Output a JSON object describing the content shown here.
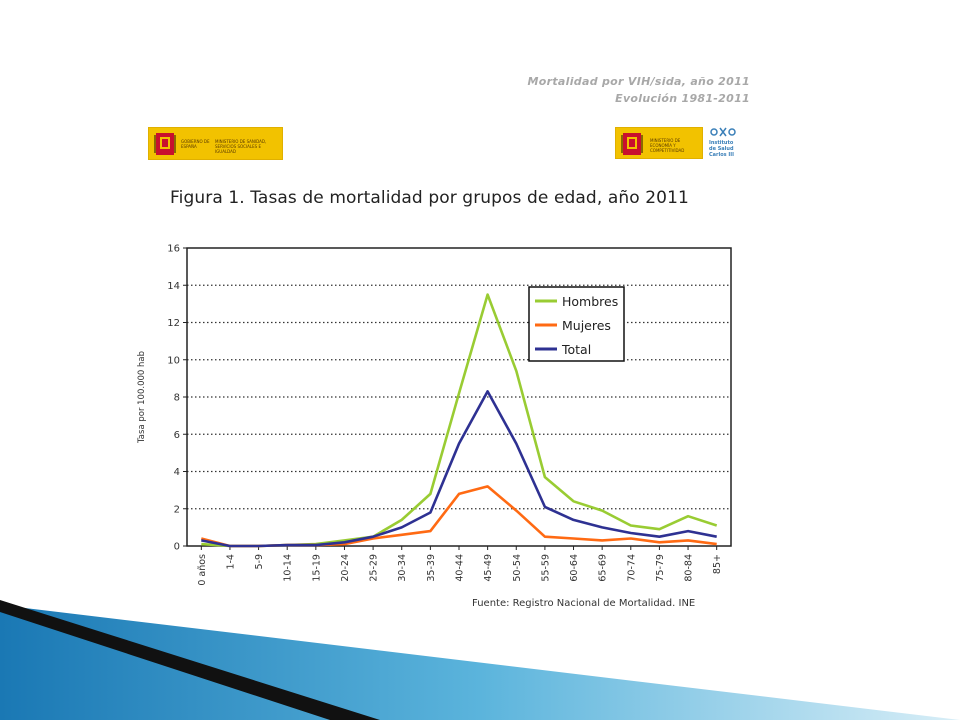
{
  "header": {
    "line1": "Mortalidad por VIH/sida, año 2011",
    "line2": "Evolución 1981-2011"
  },
  "logos": {
    "left_text_a": "GOBIERNO DE ESPAÑA",
    "left_text_b": "MINISTERIO DE SANIDAD, SERVICIOS SOCIALES E IGUALDAD",
    "right_text_a": "MINISTERIO DE ECONOMÍA Y COMPETITIVIDAD",
    "isciii_text": "Instituto de Salud Carlos III"
  },
  "figure": {
    "title": "Figura 1. Tasas de mortalidad por grupos de edad, año 2011",
    "source": "Fuente: Registro Nacional de Mortalidad. INE"
  },
  "chart_data": {
    "type": "line",
    "title": "Figura 1. Tasas de mortalidad por grupos de edad, año 2011",
    "xlabel": "",
    "ylabel": "Tasa por 100.000 hab",
    "ylim": [
      0,
      16
    ],
    "yticks": [
      0,
      2,
      4,
      6,
      8,
      10,
      12,
      14,
      16
    ],
    "grid": true,
    "legend_position": "top-right",
    "categories": [
      "0 años",
      "1-4",
      "5-9",
      "10-14",
      "15-19",
      "20-24",
      "25-29",
      "30-34",
      "35-39",
      "40-44",
      "45-49",
      "50-54",
      "55-59",
      "60-64",
      "65-69",
      "70-74",
      "75-79",
      "80-84",
      "85+"
    ],
    "series": [
      {
        "name": "Hombres",
        "color": "#99cc33",
        "values": [
          0.1,
          0.0,
          0.0,
          0.05,
          0.1,
          0.3,
          0.5,
          1.4,
          2.8,
          8.2,
          13.5,
          9.4,
          3.7,
          2.4,
          1.9,
          1.1,
          0.9,
          1.6,
          1.1
        ]
      },
      {
        "name": "Mujeres",
        "color": "#ff6a13",
        "values": [
          0.4,
          0.0,
          0.0,
          0.05,
          0.05,
          0.1,
          0.4,
          0.6,
          0.8,
          2.8,
          3.2,
          1.9,
          0.5,
          0.4,
          0.3,
          0.4,
          0.2,
          0.3,
          0.1
        ]
      },
      {
        "name": "Total",
        "color": "#2e3192",
        "values": [
          0.3,
          0.0,
          0.0,
          0.05,
          0.05,
          0.2,
          0.5,
          1.0,
          1.8,
          5.5,
          8.3,
          5.5,
          2.1,
          1.4,
          1.0,
          0.7,
          0.5,
          0.8,
          0.5
        ]
      }
    ]
  }
}
